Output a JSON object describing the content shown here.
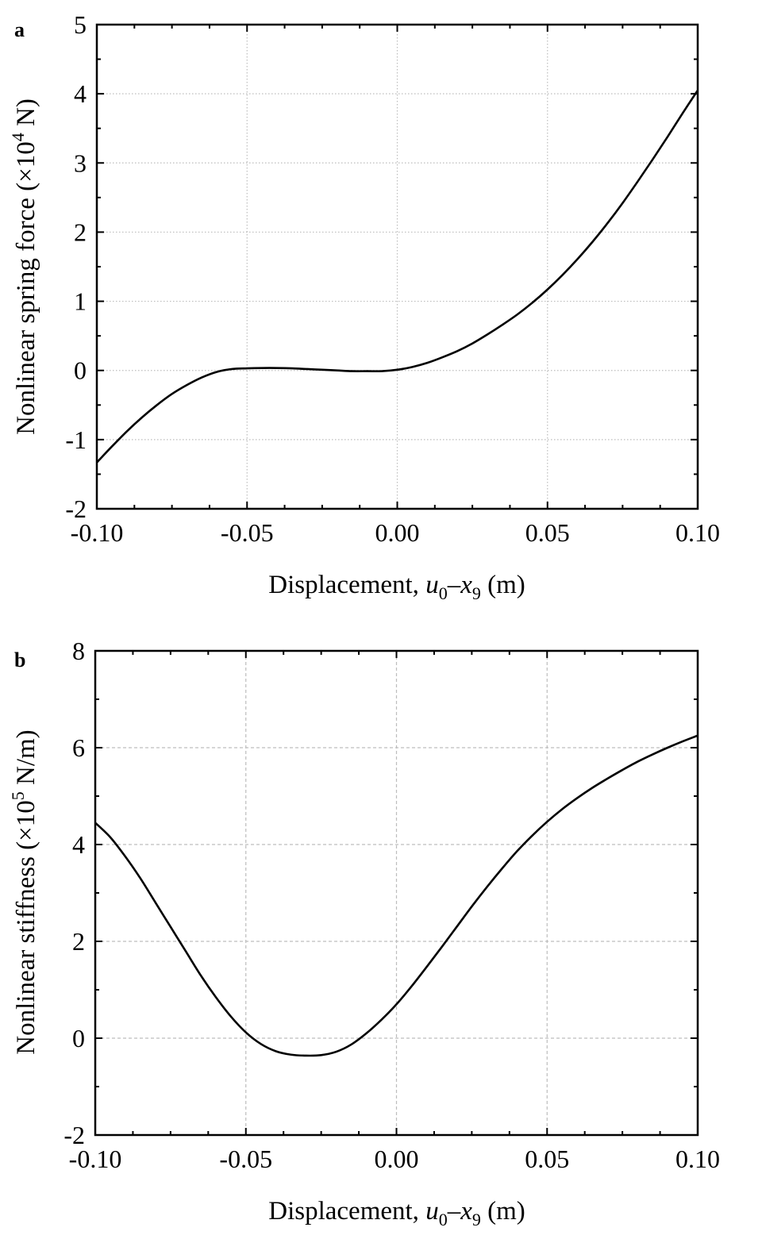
{
  "chart_data": [
    {
      "panel": "a",
      "type": "line",
      "title": "",
      "xlabel": {
        "prefix": "Displacement, ",
        "var1": "u",
        "sub1": "0",
        "op": "–",
        "var2": "x",
        "sub2": "9",
        "suffix": " (m)"
      },
      "ylabel": {
        "prefix": "Nonlinear spring force (×10",
        "sup": "4",
        "suffix": " N)"
      },
      "xlim": [
        -0.1,
        0.1
      ],
      "ylim": [
        -2,
        5
      ],
      "x_ticks": [
        "-0.10",
        "-0.05",
        "0.00",
        "0.05",
        "0.10"
      ],
      "y_ticks": [
        "-2",
        "-1",
        "0",
        "1",
        "2",
        "3",
        "4",
        "5"
      ],
      "grid": "dotted",
      "series": [
        {
          "x": [
            -0.1,
            -0.095,
            -0.09,
            -0.085,
            -0.08,
            -0.075,
            -0.07,
            -0.065,
            -0.06,
            -0.055,
            -0.05,
            -0.045,
            -0.04,
            -0.035,
            -0.03,
            -0.025,
            -0.02,
            -0.015,
            -0.01,
            -0.005,
            0.0,
            0.005,
            0.01,
            0.015,
            0.02,
            0.025,
            0.03,
            0.035,
            0.04,
            0.045,
            0.05,
            0.055,
            0.06,
            0.065,
            0.07,
            0.075,
            0.08,
            0.085,
            0.09,
            0.095,
            0.1
          ],
          "y": [
            -1.33,
            -1.1,
            -0.88,
            -0.68,
            -0.5,
            -0.34,
            -0.21,
            -0.1,
            -0.02,
            0.02,
            0.03,
            0.035,
            0.035,
            0.03,
            0.02,
            0.01,
            0.0,
            -0.01,
            -0.01,
            -0.01,
            0.01,
            0.05,
            0.11,
            0.19,
            0.28,
            0.39,
            0.52,
            0.66,
            0.81,
            0.98,
            1.17,
            1.38,
            1.61,
            1.86,
            2.13,
            2.42,
            2.73,
            3.05,
            3.38,
            3.72,
            4.05
          ]
        }
      ]
    },
    {
      "panel": "b",
      "type": "line",
      "title": "",
      "xlabel": {
        "prefix": "Displacement, ",
        "var1": "u",
        "sub1": "0",
        "op": "–",
        "var2": "x",
        "sub2": "9",
        "suffix": " (m)"
      },
      "ylabel": {
        "prefix": "Nonlinear stiffness (×10",
        "sup": "5",
        "suffix": " N/m)"
      },
      "xlim": [
        -0.1,
        0.1
      ],
      "ylim": [
        -2,
        8
      ],
      "x_ticks": [
        "-0.10",
        "-0.05",
        "0.00",
        "0.05",
        "0.10"
      ],
      "y_ticks": [
        "-2",
        "0",
        "2",
        "4",
        "6",
        "8"
      ],
      "grid": "dashed",
      "series": [
        {
          "x": [
            -0.1,
            -0.095,
            -0.09,
            -0.085,
            -0.08,
            -0.075,
            -0.07,
            -0.065,
            -0.06,
            -0.055,
            -0.05,
            -0.045,
            -0.04,
            -0.035,
            -0.03,
            -0.025,
            -0.02,
            -0.015,
            -0.01,
            -0.005,
            0.0,
            0.005,
            0.01,
            0.015,
            0.02,
            0.025,
            0.03,
            0.035,
            0.04,
            0.045,
            0.05,
            0.055,
            0.06,
            0.065,
            0.07,
            0.075,
            0.08,
            0.085,
            0.09,
            0.095,
            0.1
          ],
          "y": [
            4.45,
            4.15,
            3.75,
            3.3,
            2.8,
            2.3,
            1.8,
            1.3,
            0.85,
            0.45,
            0.12,
            -0.12,
            -0.27,
            -0.34,
            -0.36,
            -0.35,
            -0.28,
            -0.13,
            0.1,
            0.38,
            0.7,
            1.07,
            1.47,
            1.88,
            2.3,
            2.72,
            3.12,
            3.5,
            3.86,
            4.18,
            4.47,
            4.73,
            4.96,
            5.17,
            5.36,
            5.54,
            5.71,
            5.86,
            6.0,
            6.13,
            6.25
          ]
        }
      ]
    }
  ]
}
